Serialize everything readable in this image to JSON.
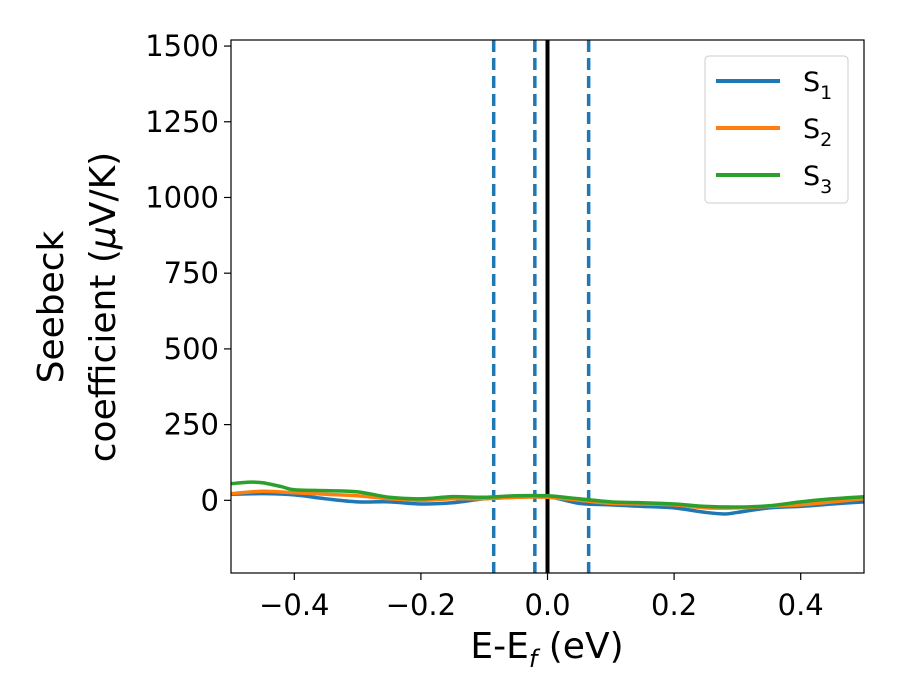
{
  "chart_data": {
    "type": "line",
    "title": "",
    "xlabel": {
      "main": "E-E",
      "sub": "f",
      "unit": " (eV)"
    },
    "ylabel": {
      "line1": "Seebeck",
      "line2_prefix": "coefficient  (",
      "mu": "μ",
      "line2_suffix": "V/K)"
    },
    "xlim": [
      -0.5,
      0.5
    ],
    "ylim": [
      -240,
      1520
    ],
    "x_ticks": [
      -0.4,
      -0.2,
      0.0,
      0.2,
      0.4
    ],
    "x_tick_labels": [
      "−0.4",
      "−0.2",
      "0.0",
      "0.2",
      "0.4"
    ],
    "y_ticks": [
      0,
      250,
      500,
      750,
      1000,
      1250,
      1500
    ],
    "y_tick_labels": [
      "0",
      "250",
      "500",
      "750",
      "1000",
      "1250",
      "1500"
    ],
    "legend_position": "top-right",
    "vertical_lines": [
      {
        "x": -0.085,
        "style": "dashed",
        "color": "#1f77b4"
      },
      {
        "x": -0.02,
        "style": "dashed",
        "color": "#1f77b4"
      },
      {
        "x": 0.065,
        "style": "dashed",
        "color": "#1f77b4"
      },
      {
        "x": 0.0,
        "style": "solid",
        "color": "#000000"
      }
    ],
    "series": [
      {
        "name": "S",
        "sub": "1",
        "color": "#1f77b4",
        "x": [
          -0.5,
          -0.45,
          -0.4,
          -0.35,
          -0.3,
          -0.25,
          -0.2,
          -0.15,
          -0.1,
          -0.05,
          0.0,
          0.05,
          0.1,
          0.15,
          0.2,
          0.25,
          0.28,
          0.3,
          0.35,
          0.4,
          0.45,
          0.5
        ],
        "y": [
          20,
          22,
          18,
          5,
          -5,
          -5,
          -12,
          -8,
          5,
          10,
          12,
          -10,
          -15,
          -20,
          -25,
          -40,
          -45,
          -40,
          -25,
          -20,
          -12,
          -5
        ]
      },
      {
        "name": "S",
        "sub": "2",
        "color": "#ff7f0e",
        "x": [
          -0.5,
          -0.45,
          -0.4,
          -0.35,
          -0.3,
          -0.25,
          -0.2,
          -0.15,
          -0.1,
          -0.05,
          0.0,
          0.05,
          0.1,
          0.15,
          0.2,
          0.25,
          0.3,
          0.35,
          0.4,
          0.45,
          0.5
        ],
        "y": [
          22,
          30,
          25,
          20,
          15,
          5,
          0,
          5,
          5,
          10,
          10,
          0,
          -10,
          -12,
          -15,
          -25,
          -25,
          -20,
          -15,
          -5,
          5
        ]
      },
      {
        "name": "S",
        "sub": "3",
        "color": "#2ca02c",
        "x": [
          -0.5,
          -0.47,
          -0.45,
          -0.42,
          -0.4,
          -0.35,
          -0.3,
          -0.25,
          -0.2,
          -0.15,
          -0.1,
          -0.05,
          0.0,
          0.05,
          0.1,
          0.15,
          0.2,
          0.25,
          0.3,
          0.35,
          0.4,
          0.45,
          0.5
        ],
        "y": [
          55,
          60,
          58,
          45,
          35,
          32,
          28,
          10,
          5,
          12,
          10,
          15,
          15,
          5,
          -5,
          -8,
          -12,
          -20,
          -22,
          -18,
          -5,
          5,
          12
        ]
      }
    ]
  }
}
